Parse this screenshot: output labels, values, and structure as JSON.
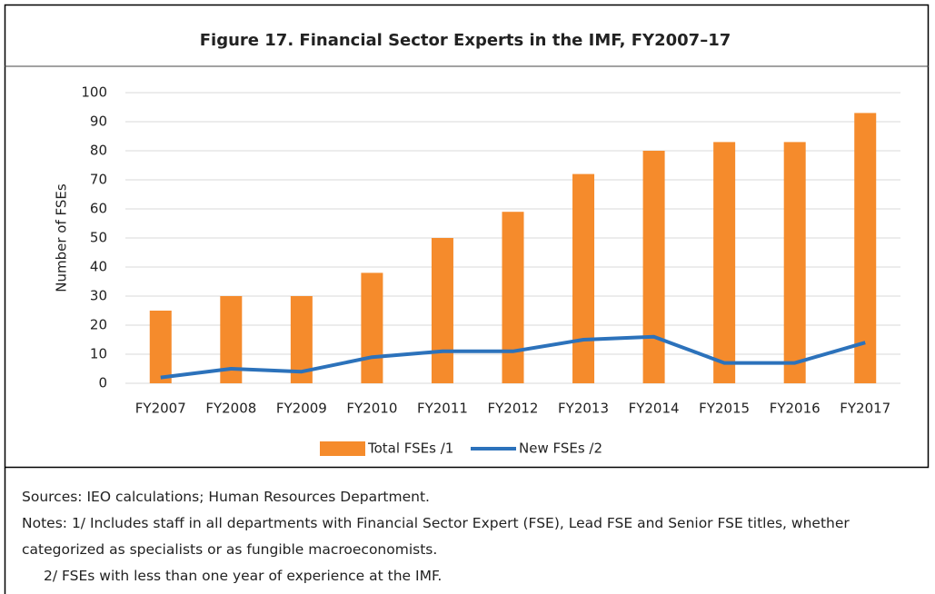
{
  "chart_data": {
    "type": "bar_line",
    "title": "Figure 17. Financial Sector Experts in the IMF, FY2007–17",
    "y_label": "Number of FSEs",
    "categories": [
      "FY2007",
      "FY2008",
      "FY2009",
      "FY2010",
      "FY2011",
      "FY2012",
      "FY2013",
      "FY2014",
      "FY2015",
      "FY2016",
      "FY2017"
    ],
    "series": [
      {
        "name": "Total FSEs /1",
        "type": "bar",
        "color": "#f58b2c",
        "values": [
          25,
          30,
          30,
          38,
          50,
          59,
          72,
          80,
          83,
          83,
          93
        ]
      },
      {
        "name": "New FSEs /2",
        "type": "line",
        "color": "#2c72bb",
        "values": [
          2,
          5,
          4,
          9,
          11,
          11,
          15,
          16,
          7,
          7,
          14
        ]
      }
    ],
    "ylim": [
      0,
      100
    ],
    "yticks": [
      0,
      10,
      20,
      30,
      40,
      50,
      60,
      70,
      80,
      90,
      100
    ],
    "grid": true,
    "legend": "bottom"
  },
  "sources": "Sources: IEO calculations; Human Resources Department.",
  "notes_label": "Notes:",
  "notes": [
    "1/ Includes staff in all departments with Financial Sector Expert (FSE), Lead FSE and Senior FSE titles, whether categorized as specialists or as fungible macroeconomists.",
    "2/ FSEs with less than one year of experience at the IMF."
  ]
}
